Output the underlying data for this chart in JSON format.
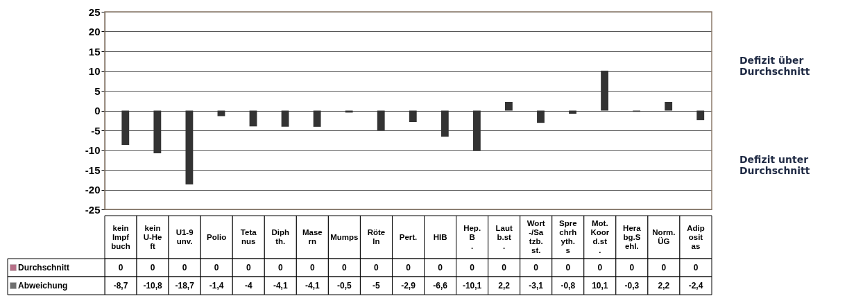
{
  "chart_data": {
    "type": "bar",
    "categories": [
      "kein Impfbuch",
      "kein U-Heft",
      "U1-9 unv.",
      "Polio",
      "Tetanus",
      "Diphth.",
      "Masern",
      "Mumps",
      "Röteln",
      "Pert.",
      "HIB",
      "Hep. B .",
      "Lautb.st.",
      "Wort-/Satzb.st.",
      "Sprechrhyth.s",
      "Mot. Koord.st.",
      "Herabg.Sehl.",
      "Norm. ÜG",
      "Adipositas"
    ],
    "series": [
      {
        "name": "Durchschnitt",
        "color": "#993355",
        "values": [
          0,
          0,
          0,
          0,
          0,
          0,
          0,
          0,
          0,
          0,
          0,
          0,
          0,
          0,
          0,
          0,
          0,
          0,
          0
        ],
        "value_labels": [
          "0",
          "0",
          "0",
          "0",
          "0",
          "0",
          "0",
          "0",
          "0",
          "0",
          "0",
          "0",
          "0",
          "0",
          "0",
          "0",
          "0",
          "0",
          "0"
        ]
      },
      {
        "name": "Abweichung",
        "color": "#333333",
        "values": [
          -8.7,
          -10.8,
          -18.7,
          -1.4,
          -4,
          -4.1,
          -4.1,
          -0.5,
          -5,
          -2.9,
          -6.6,
          -10.1,
          2.2,
          -3.1,
          -0.8,
          10.1,
          -0.3,
          2.2,
          -2.4
        ],
        "value_labels": [
          "-8,7",
          "-10,8",
          "-18,7",
          "-1,4",
          "-4",
          "-4,1",
          "-4,1",
          "-0,5",
          "-5",
          "-2,9",
          "-6,6",
          "-10,1",
          "2,2",
          "-3,1",
          "-0,8",
          "10,1",
          "-0,3",
          "2,2",
          "-2,4"
        ]
      }
    ],
    "ylim": [
      -25,
      25
    ],
    "yticks": [
      -25,
      -20,
      -15,
      -10,
      -5,
      0,
      5,
      10,
      15,
      20,
      25
    ],
    "grid": "y",
    "legend": "bottom left",
    "annotations": [
      "Defizit über Durchschnitt",
      "Defizit unter Durchschnitt"
    ]
  }
}
